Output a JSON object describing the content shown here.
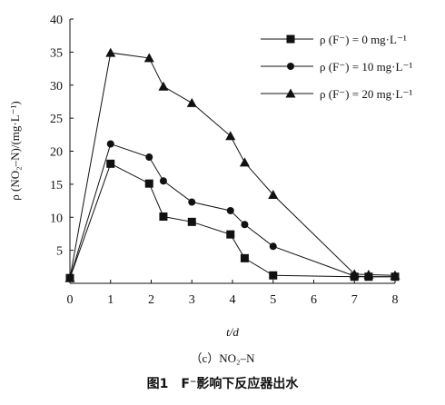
{
  "caption": "（c）NO₂–N",
  "figure_caption": "图1　F⁻影响下反应器出水",
  "chart_data": {
    "type": "line",
    "xlabel": "t/d",
    "ylabel": "ρ (NO₂–N)/(mg·L⁻¹)",
    "xlim": [
      0,
      8
    ],
    "ylim": [
      0,
      40
    ],
    "xticks": [
      0,
      1,
      2,
      3,
      4,
      5,
      6,
      7,
      8
    ],
    "yticks": [
      5,
      10,
      15,
      20,
      25,
      30,
      35,
      40
    ],
    "grid": false,
    "legend_position": "top-right",
    "series": [
      {
        "name": "ρ (F⁻) = 0 mg·L⁻¹",
        "marker": "square",
        "x": [
          0,
          1,
          1.95,
          2.3,
          3,
          3.95,
          4.3,
          5,
          7,
          7.35,
          8
        ],
        "y": [
          0.8,
          18.1,
          15.1,
          10.1,
          9.3,
          7.4,
          3.8,
          1.2,
          1.0,
          1.0,
          1.0
        ]
      },
      {
        "name": "ρ (F⁻) = 10 mg·L⁻¹",
        "marker": "circle",
        "x": [
          0,
          1,
          1.95,
          2.3,
          3,
          3.95,
          4.3,
          5,
          7,
          7.35,
          8
        ],
        "y": [
          0.8,
          21.1,
          19.1,
          15.5,
          12.3,
          11.0,
          8.9,
          5.6,
          1.1,
          1.0,
          1.0
        ]
      },
      {
        "name": "ρ (F⁻) = 20 mg·L⁻¹",
        "marker": "triangle",
        "x": [
          0,
          1,
          1.95,
          2.3,
          3,
          3.95,
          4.3,
          5,
          7,
          7.35,
          8
        ],
        "y": [
          0.8,
          34.9,
          34.1,
          29.8,
          27.3,
          22.3,
          18.3,
          13.4,
          1.4,
          1.3,
          1.2
        ]
      }
    ]
  }
}
